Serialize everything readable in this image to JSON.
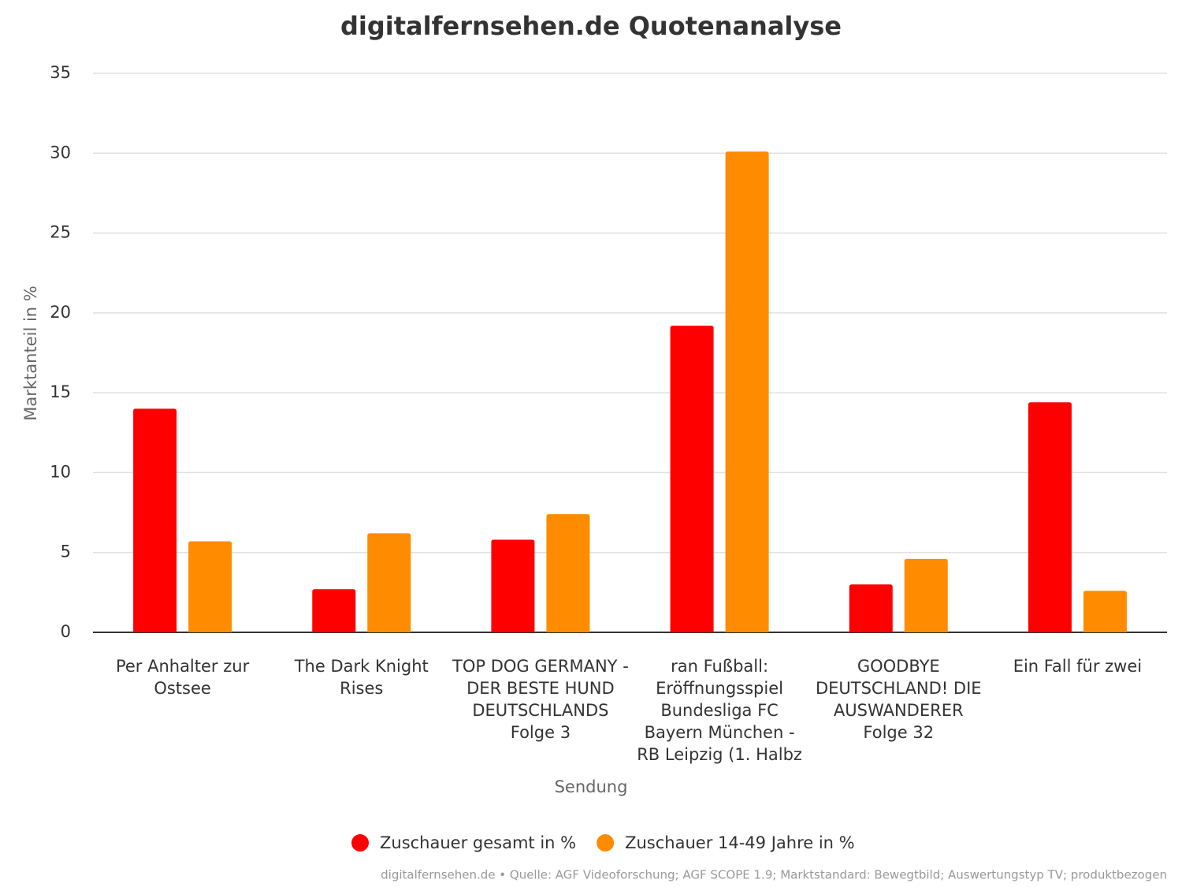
{
  "chart_data": {
    "type": "bar",
    "title": "digitalfernsehen.de Quotenanalyse",
    "xlabel": "Sendung",
    "ylabel": "Marktanteil in %",
    "footer": "digitalfernsehen.de • Quelle: AGF Videoforschung; AGF SCOPE 1.9; Marktstandard: Bewegtbild; Auswertungstyp TV; produktbezogen",
    "categories": [
      "Per Anhalter zur Ostsee",
      "The Dark Knight Rises",
      "TOP DOG GERMANY - DER BESTE HUND DEUTSCHLANDS Folge 3",
      "ran Fußball: Eröffnungsspiel Bundesliga FC Bayern München - RB Leipzig (1. Halbz",
      "GOODBYE DEUTSCHLAND! DIE AUSWANDERER Folge 32",
      "Ein Fall für zwei"
    ],
    "series": [
      {
        "name": "Zuschauer gesamt in %",
        "color": "#ff0000",
        "values": [
          14.0,
          2.7,
          5.8,
          19.2,
          3.0,
          14.4
        ]
      },
      {
        "name": "Zuschauer 14-49 Jahre in %",
        "color": "#ff8c00",
        "values": [
          5.7,
          6.2,
          7.4,
          30.1,
          4.6,
          2.6
        ]
      }
    ],
    "ylim": [
      0,
      35
    ],
    "yticks": [
      0,
      5,
      10,
      15,
      20,
      25,
      30,
      35
    ],
    "grid": true,
    "legend": "bottom"
  }
}
